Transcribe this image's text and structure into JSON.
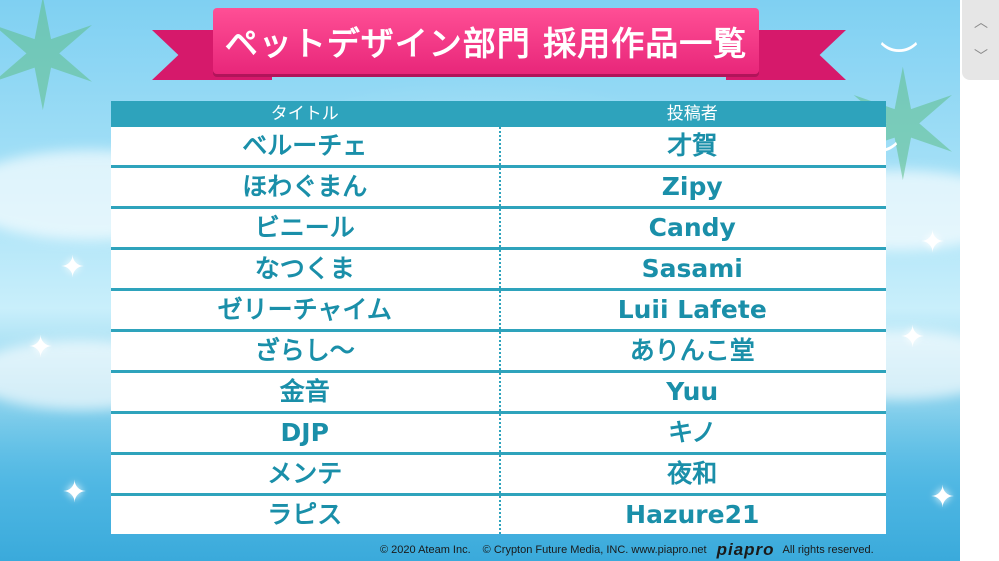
{
  "banner": {
    "title": "ペットデザイン部門 採用作品一覧"
  },
  "table": {
    "headers": {
      "title": "タイトル",
      "author": "投稿者"
    },
    "rows": [
      {
        "title": "ベルーチェ",
        "author": "才賀"
      },
      {
        "title": "ほわぐまん",
        "author": "Zipy"
      },
      {
        "title": "ビニール",
        "author": "Candy"
      },
      {
        "title": "なつくま",
        "author": "Sasami"
      },
      {
        "title": "ゼリーチャイム",
        "author": "Luii Lafete"
      },
      {
        "title": "ざらし〜",
        "author": "ありんこ堂"
      },
      {
        "title": "金音",
        "author": "Yuu"
      },
      {
        "title": "DJP",
        "author": "キノ"
      },
      {
        "title": "メンテ",
        "author": "夜和"
      },
      {
        "title": "ラピス",
        "author": "Hazure21"
      }
    ]
  },
  "footer": {
    "ateam": "© 2020 Ateam Inc.",
    "crypton": "© Crypton Future Media, INC. www.piapro.net",
    "logo": "piapro",
    "rights": "All rights reserved."
  },
  "scroll": {
    "up_icon": "chevron-up-icon",
    "down_icon": "chevron-down-icon"
  }
}
